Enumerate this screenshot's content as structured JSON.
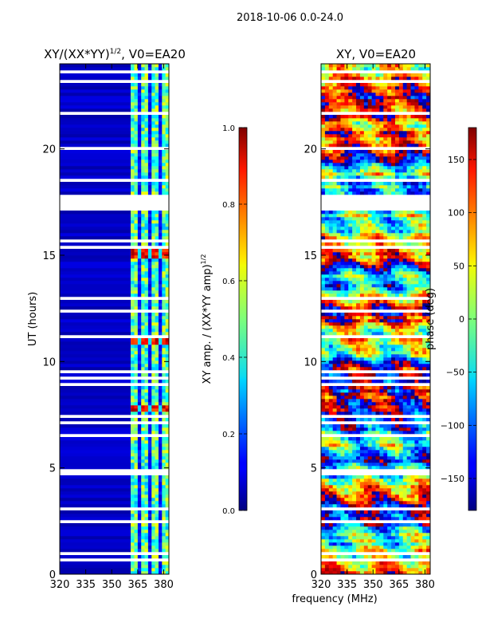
{
  "figure_title": "2018-10-06 0.0-24.0",
  "xlabel_shared": "frequency (MHz)",
  "chart_data": [
    {
      "type": "heatmap",
      "title": "XY/(XX*YY)",
      "title_sup": "1/2",
      "title_suffix": ", V0=EA20",
      "xlabel": "frequency (MHz)",
      "ylabel": "UT (hours)",
      "xlim": [
        320,
        383
      ],
      "ylim": [
        0,
        24
      ],
      "xticks": [
        320,
        335,
        350,
        365,
        380
      ],
      "yticks": [
        0,
        5,
        10,
        15,
        20
      ],
      "colorbar": {
        "label": "XY amp. / (XX*YY amp)",
        "label_sup": "1/2",
        "range": [
          0.0,
          1.0
        ],
        "ticks": [
          "0.0",
          "0.2",
          "0.4",
          "0.6",
          "0.8",
          "1.0"
        ],
        "colormap": "jet"
      },
      "channel_columns_MHz": [
        362,
        364,
        366,
        368,
        370,
        372,
        374,
        376,
        378,
        380,
        382
      ],
      "low_band_mean": 0.05,
      "high_amp_intervals_hours": [
        [
          7.6,
          7.9
        ],
        [
          10.8,
          11.3
        ],
        [
          14.8,
          15.4
        ]
      ],
      "gaps_hours": [
        [
          17.1,
          17.8
        ],
        [
          12.3,
          12.4
        ],
        [
          11.5,
          11.6
        ],
        [
          6.5,
          6.6
        ],
        [
          4.8,
          4.9
        ],
        [
          2.4,
          2.6
        ],
        [
          1.6,
          1.7
        ],
        [
          0.6,
          0.7
        ]
      ]
    },
    {
      "type": "heatmap",
      "title": "XY, V0=EA20",
      "xlabel": "frequency (MHz)",
      "ylabel": "",
      "xlim": [
        320,
        383
      ],
      "ylim": [
        0,
        24
      ],
      "xticks": [
        320,
        335,
        350,
        365,
        380
      ],
      "yticks": [
        0,
        5,
        10,
        15,
        20
      ],
      "colorbar": {
        "label": "phase (deg)",
        "range": [
          -180,
          180
        ],
        "ticks": [
          "150",
          "100",
          "50",
          "0",
          "−50",
          "−100",
          "−150"
        ],
        "tick_values": [
          150,
          100,
          50,
          0,
          -50,
          -100,
          -150
        ],
        "colormap": "jet"
      },
      "gaps_hours": [
        [
          17.1,
          17.8
        ],
        [
          12.3,
          12.4
        ],
        [
          11.5,
          11.6
        ],
        [
          6.5,
          6.6
        ],
        [
          4.8,
          4.9
        ],
        [
          2.4,
          2.6
        ],
        [
          1.6,
          1.7
        ],
        [
          0.6,
          0.7
        ]
      ]
    }
  ]
}
